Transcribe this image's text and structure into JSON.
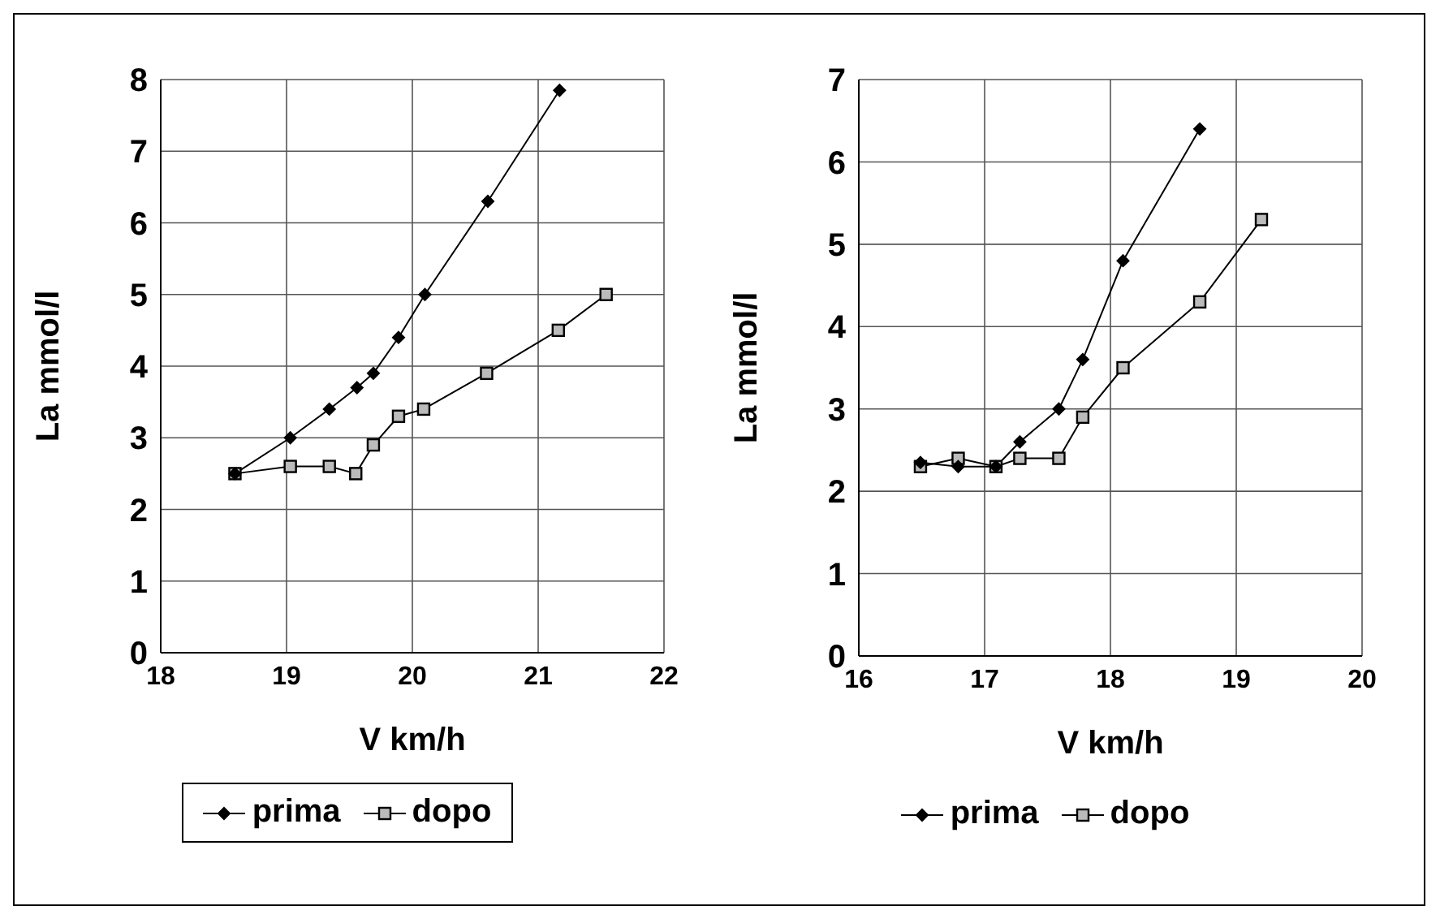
{
  "chart_data": [
    {
      "type": "line",
      "xlabel": "V km/h",
      "ylabel": "La mmol/l",
      "xlim": [
        18,
        22
      ],
      "xticks": [
        18,
        19,
        20,
        21,
        22
      ],
      "ylim": [
        0,
        8
      ],
      "yticks": [
        0,
        1,
        2,
        3,
        4,
        5,
        6,
        7,
        8
      ],
      "grid": true,
      "legend": "bottom",
      "series": [
        {
          "name": "prima",
          "color": "#000000",
          "marker": "diamond",
          "x": [
            18.59,
            19.03,
            19.34,
            19.56,
            19.69,
            19.89,
            20.1,
            20.6,
            21.17
          ],
          "values": [
            2.5,
            3.0,
            3.4,
            3.7,
            3.9,
            4.4,
            5.0,
            6.3,
            7.85
          ]
        },
        {
          "name": "dopo",
          "color": "#000000",
          "marker": "square",
          "x": [
            18.59,
            19.03,
            19.34,
            19.55,
            19.69,
            19.89,
            20.09,
            20.59,
            21.16,
            21.54
          ],
          "values": [
            2.5,
            2.6,
            2.6,
            2.5,
            2.9,
            3.3,
            3.4,
            3.9,
            4.5,
            5.0
          ]
        }
      ]
    },
    {
      "type": "line",
      "xlabel": "V km/h",
      "ylabel": "La mmol/l",
      "xlim": [
        16,
        20
      ],
      "xticks": [
        16,
        17,
        18,
        19,
        20
      ],
      "ylim": [
        0,
        7
      ],
      "yticks": [
        0,
        1,
        2,
        3,
        4,
        5,
        6,
        7
      ],
      "grid": true,
      "legend": "bottom",
      "series": [
        {
          "name": "prima",
          "color": "#000000",
          "marker": "diamond",
          "x": [
            16.49,
            16.79,
            17.09,
            17.28,
            17.59,
            17.78,
            18.1,
            18.71
          ],
          "values": [
            2.35,
            2.3,
            2.3,
            2.6,
            3.0,
            3.6,
            4.8,
            6.4
          ]
        },
        {
          "name": "dopo",
          "color": "#000000",
          "marker": "square",
          "x": [
            16.49,
            16.79,
            17.09,
            17.28,
            17.59,
            17.78,
            18.1,
            18.71,
            19.2
          ],
          "values": [
            2.3,
            2.4,
            2.3,
            2.4,
            2.4,
            2.9,
            3.5,
            4.3,
            5.3
          ]
        }
      ]
    }
  ]
}
